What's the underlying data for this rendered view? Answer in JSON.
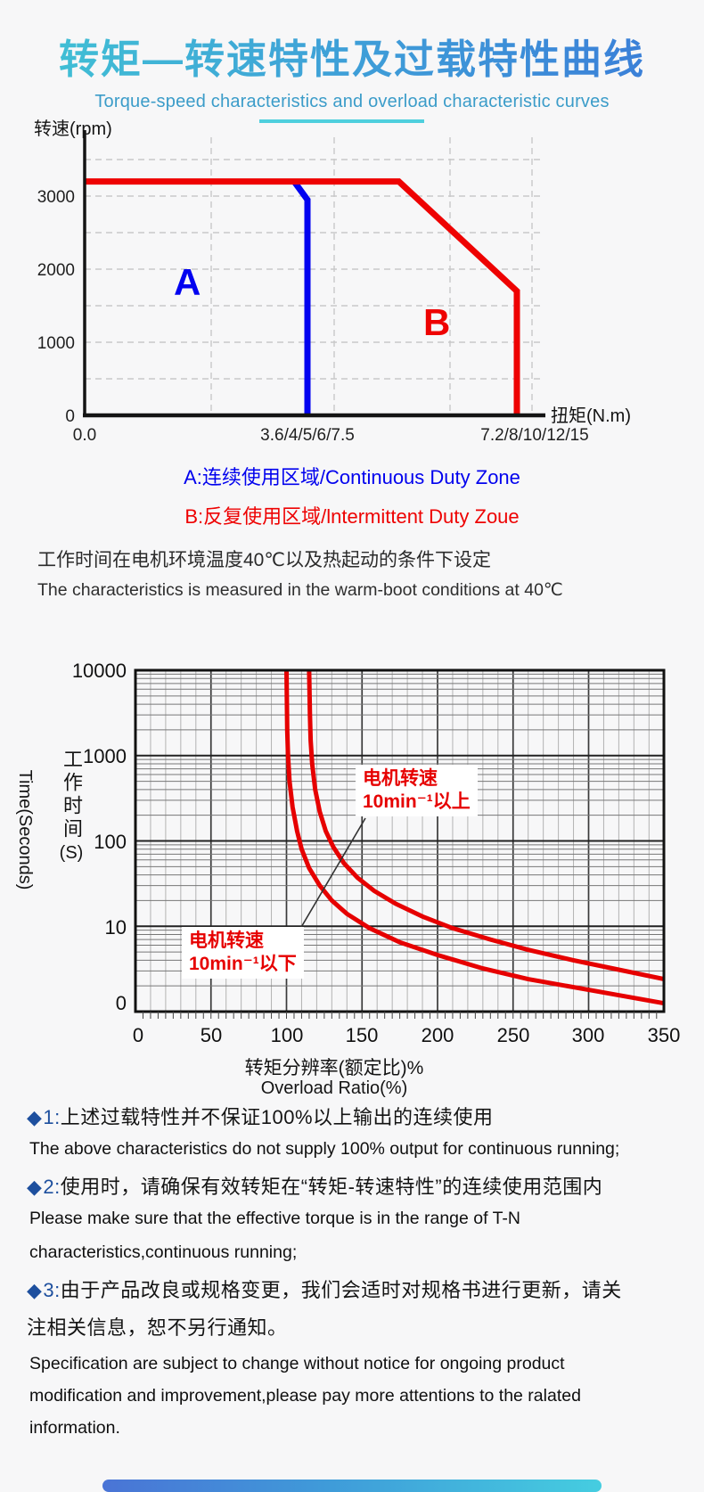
{
  "header": {
    "title": "转矩—转速特性及过载特性曲线",
    "subtitle": "Torque-speed characteristics and overload characteristic curves"
  },
  "legend": {
    "a": "A:连续使用区域/Continuous Duty Zone",
    "b": "B:反复使用区域/lntermittent Duty Zoue"
  },
  "condition": {
    "cn": "工作时间在电机环境温度40℃以及热起动的条件下设定",
    "en": "The characteristics is measured in the warm-boot conditions at 40℃"
  },
  "chart_data": [
    {
      "type": "line",
      "title": "转矩-转速特性 / Torque-speed characteristic (T-N)",
      "ylabel": "转速(rpm)",
      "xlabel": "扭矩(N.m)",
      "y_ticks": [
        0,
        1000,
        2000,
        3000
      ],
      "ylim": [
        0,
        3500
      ],
      "x_tick_labels": [
        "0.0",
        "3.6/4/5/6/7.5",
        "7.2/8/10/12/15"
      ],
      "x_unit": "multiple of rated torque; 1.0 = '3.6/4/5/6/7.5' N.m tick, ~1.94 = '7.2/8/10/12/15' N.m tick",
      "grid": "dashed",
      "zone_labels": [
        {
          "text": "A",
          "color": "#0202f0"
        },
        {
          "text": "B",
          "color": "#ee0202"
        }
      ],
      "series": [
        {
          "name": "Continuous duty zone (A) boundary",
          "color": "#0202f0",
          "points": [
            [
              0.94,
              3200
            ],
            [
              1.0,
              2950
            ],
            [
              1.0,
              0
            ]
          ]
        },
        {
          "name": "Intermittent duty zone (B) boundary",
          "color": "#ee0202",
          "points": [
            [
              0,
              3200
            ],
            [
              1.41,
              3200
            ],
            [
              1.94,
              1700
            ],
            [
              1.94,
              0
            ]
          ]
        }
      ]
    },
    {
      "type": "line",
      "title": "过载特性 / Overload characteristic",
      "ylabel_cn": "工作时间",
      "ylabel_cn_unit": "(S)",
      "ylabel_en": "Time(Seconds)",
      "xlabel_cn": "转矩分辨率(额定比)%",
      "xlabel_en": "Overload Ratio(%)",
      "y_scale": "log",
      "ylim": [
        1,
        10000
      ],
      "y_tick_labels": [
        "10000",
        "1000",
        "100",
        "10",
        "0"
      ],
      "x_ticks": [
        0,
        50,
        100,
        150,
        200,
        250,
        300,
        350
      ],
      "xlim": [
        0,
        350
      ],
      "grid": "log minor horizontals each decade; vertical minors every 10, majors every 50",
      "annotations": {
        "upper": {
          "line1": "电机转速",
          "line2": "10min⁻¹以上"
        },
        "lower": {
          "line1": "电机转速",
          "line2": "10min⁻¹以下"
        }
      },
      "series": [
        {
          "name": "电机转速10min⁻¹以上 (motor speed ≥ 10 min⁻¹)",
          "color": "#e60000",
          "points": [
            [
              115,
              10000
            ],
            [
              115.5,
              3000
            ],
            [
              116,
              1500
            ],
            [
              117,
              800
            ],
            [
              119,
              400
            ],
            [
              122,
              220
            ],
            [
              126,
              130
            ],
            [
              131,
              85
            ],
            [
              138,
              55
            ],
            [
              147,
              37
            ],
            [
              158,
              26
            ],
            [
              172,
              18.5
            ],
            [
              190,
              13
            ],
            [
              210,
              9.5
            ],
            [
              235,
              7
            ],
            [
              260,
              5.3
            ],
            [
              290,
              4
            ],
            [
              320,
              3.1
            ],
            [
              350,
              2.4
            ]
          ]
        },
        {
          "name": "电机转速10min⁻¹以下 (motor speed < 10 min⁻¹)",
          "color": "#e60000",
          "points": [
            [
              100,
              10000
            ],
            [
              100.5,
              2000
            ],
            [
              101,
              1000
            ],
            [
              102,
              500
            ],
            [
              104,
              250
            ],
            [
              107,
              130
            ],
            [
              110,
              80
            ],
            [
              115,
              48
            ],
            [
              122,
              30
            ],
            [
              130,
              20
            ],
            [
              140,
              14
            ],
            [
              155,
              9.5
            ],
            [
              175,
              6.5
            ],
            [
              200,
              4.6
            ],
            [
              230,
              3.2
            ],
            [
              260,
              2.4
            ],
            [
              300,
              1.8
            ],
            [
              350,
              1.25
            ]
          ]
        }
      ]
    }
  ],
  "notes": [
    {
      "marker": "◆",
      "num": "1:",
      "cn": "上述过载特性并不保证100%以上输出的连续使用",
      "en": [
        "The above characteristics do not supply 100% output for continuous running;"
      ]
    },
    {
      "marker": "◆",
      "num": "2:",
      "cn": "使用时，请确保有效转矩在“转矩-转速特性”的连续使用范围内",
      "en": [
        "Please make sure that the effective torque is in the range of T-N",
        "characteristics,continuous running;"
      ]
    },
    {
      "marker": "◆",
      "num": "3:",
      "cn": "由于产品改良或规格变更，我们会适时对规格书进行更新，请关",
      "cn2": "注相关信息，恕不另行通知。",
      "en": [
        "Specification are subject to change without notice for ongoing product",
        "modification and improvement,please pay more attentions to the ralated",
        "information."
      ]
    }
  ]
}
